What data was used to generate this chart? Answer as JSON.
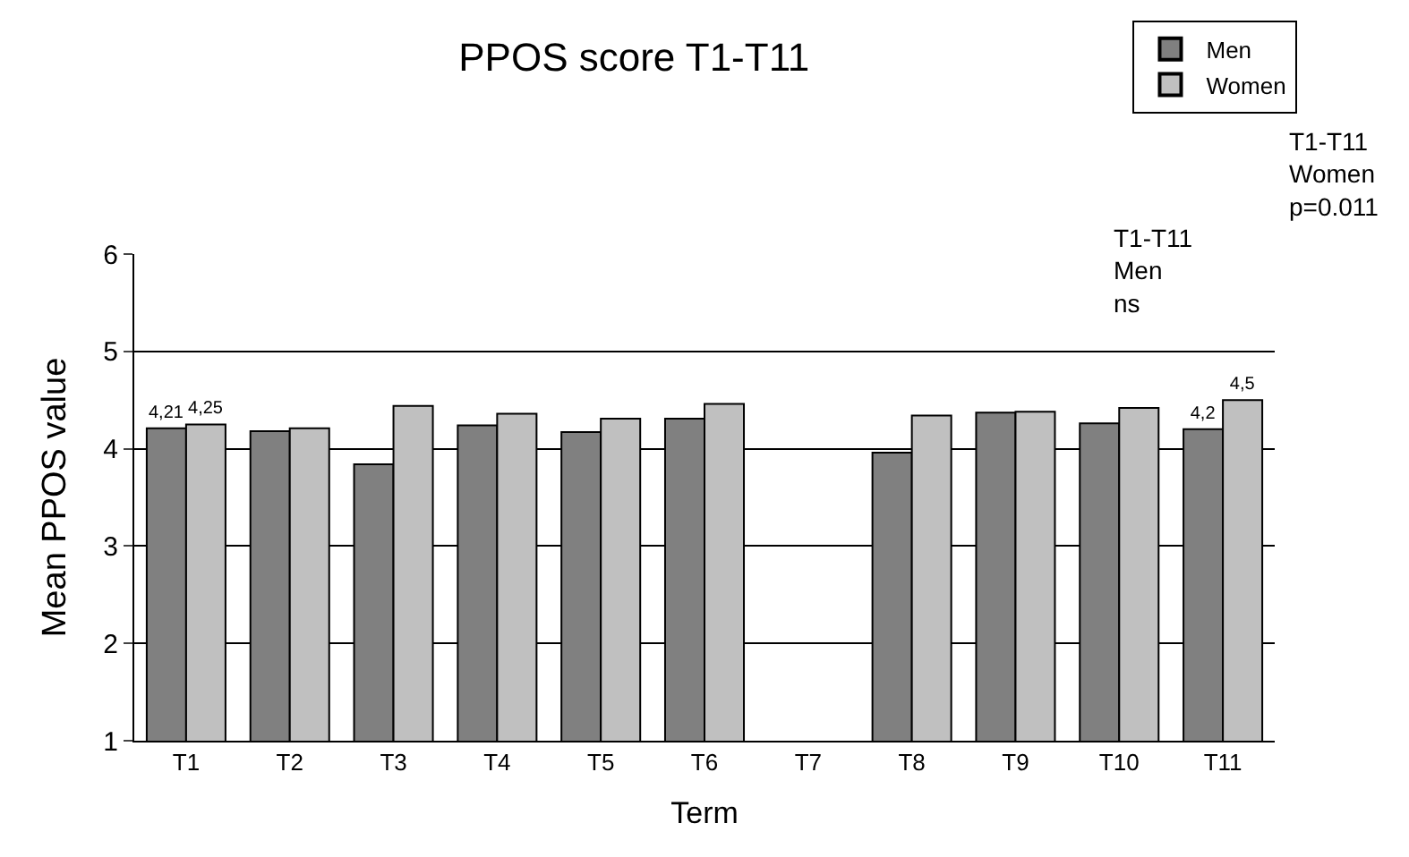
{
  "chart_data": {
    "type": "bar",
    "title": "PPOS score T1-T11",
    "xlabel": "Term",
    "ylabel": "Mean PPOS value",
    "categories": [
      "T1",
      "T2",
      "T3",
      "T4",
      "T5",
      "T6",
      "T7",
      "T8",
      "T9",
      "T10",
      "T11"
    ],
    "series": [
      {
        "name": "Men",
        "color": "#808080",
        "values": [
          4.21,
          4.18,
          3.84,
          4.24,
          4.17,
          4.31,
          null,
          3.96,
          4.37,
          4.26,
          4.2
        ],
        "value_labels": [
          "4,21",
          null,
          null,
          null,
          null,
          null,
          null,
          null,
          null,
          null,
          "4,2"
        ]
      },
      {
        "name": "Women",
        "color": "#c0c0c0",
        "values": [
          4.25,
          4.21,
          4.44,
          4.36,
          4.31,
          4.46,
          null,
          4.34,
          4.38,
          4.42,
          4.5
        ],
        "value_labels": [
          "4,25",
          null,
          null,
          null,
          null,
          null,
          null,
          null,
          null,
          null,
          "4,5"
        ]
      }
    ],
    "ylim": [
      1,
      6
    ],
    "yticks": [
      1,
      2,
      3,
      4,
      5,
      6
    ],
    "grid": "y",
    "legend": "top right",
    "annotations": [
      "T1-T11\nMen\nns",
      "T1-T11\nWomen\np=0.011"
    ]
  }
}
